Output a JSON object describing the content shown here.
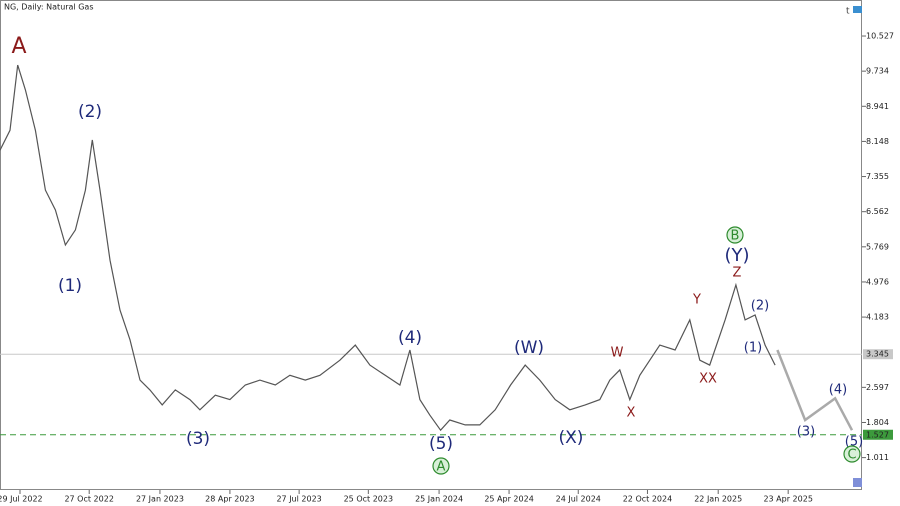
{
  "chart_data": {
    "type": "line",
    "title": "NG, Daily: Natural Gas",
    "xlim": [
      "2022-07-03",
      "2025-07-28"
    ],
    "ylim": [
      0.28,
      11.34
    ],
    "xticks": [
      {
        "value": "2022-07-29",
        "label": "29 Jul 2022"
      },
      {
        "value": "2022-10-27",
        "label": "27 Oct 2022"
      },
      {
        "value": "2023-01-27",
        "label": "27 Jan 2023"
      },
      {
        "value": "2023-04-28",
        "label": "28 Apr 2023"
      },
      {
        "value": "2023-07-27",
        "label": "27 Jul 2023"
      },
      {
        "value": "2023-10-25",
        "label": "25 Oct 2023"
      },
      {
        "value": "2024-01-25",
        "label": "25 Jan 2024"
      },
      {
        "value": "2024-04-25",
        "label": "25 Apr 2024"
      },
      {
        "value": "2024-07-24",
        "label": "24 Jul 2024"
      },
      {
        "value": "2024-10-22",
        "label": "22 Oct 2024"
      },
      {
        "value": "2025-01-22",
        "label": "22 Jan 2025"
      },
      {
        "value": "2025-04-23",
        "label": "23 Apr 2025"
      }
    ],
    "yticks": [
      10.527,
      9.734,
      8.941,
      8.148,
      7.355,
      6.562,
      5.769,
      4.976,
      4.183,
      2.597,
      1.804,
      1.011
    ],
    "series": [
      {
        "color": "#555555",
        "x": [
          "2022-07-03",
          "2022-07-16",
          "2022-07-26",
          "2022-08-05",
          "2022-08-18",
          "2022-08-31",
          "2022-09-13",
          "2022-09-26",
          "2022-10-09",
          "2022-10-22",
          "2022-10-31",
          "2022-11-10",
          "2022-11-23",
          "2022-12-06",
          "2022-12-19",
          "2023-01-01",
          "2023-01-14",
          "2023-01-30",
          "2023-02-16",
          "2023-03-07",
          "2023-03-20",
          "2023-04-09",
          "2023-04-28",
          "2023-05-18",
          "2023-06-06",
          "2023-06-26",
          "2023-07-15",
          "2023-08-04",
          "2023-08-23",
          "2023-09-18",
          "2023-10-08",
          "2023-10-27",
          "2023-11-16",
          "2023-12-05",
          "2023-12-18",
          "2023-12-31",
          "2024-01-13",
          "2024-01-27",
          "2024-02-08",
          "2024-02-28",
          "2024-03-18",
          "2024-04-07",
          "2024-04-27",
          "2024-05-16",
          "2024-06-04",
          "2024-06-24",
          "2024-07-13",
          "2024-08-02",
          "2024-08-21",
          "2024-09-03",
          "2024-09-16",
          "2024-09-29",
          "2024-10-12",
          "2024-11-07",
          "2024-11-27",
          "2024-12-16",
          "2024-12-29",
          "2025-01-11",
          "2025-01-31",
          "2025-02-14",
          "2025-02-26",
          "2025-03-11",
          "2025-03-24",
          "2025-04-06"
        ],
        "values": [
          7.95,
          8.4,
          9.87,
          9.31,
          8.4,
          7.05,
          6.6,
          5.81,
          6.15,
          7.05,
          8.18,
          7.05,
          5.47,
          4.34,
          3.67,
          2.76,
          2.54,
          2.2,
          2.54,
          2.32,
          2.09,
          2.42,
          2.32,
          2.65,
          2.76,
          2.65,
          2.87,
          2.76,
          2.87,
          3.21,
          3.55,
          3.1,
          2.87,
          2.65,
          3.44,
          2.32,
          1.97,
          1.63,
          1.86,
          1.75,
          1.75,
          2.09,
          2.65,
          3.1,
          2.76,
          2.32,
          2.09,
          2.2,
          2.32,
          2.76,
          2.99,
          2.32,
          2.87,
          3.55,
          3.44,
          4.12,
          3.21,
          3.1,
          4.12,
          4.91,
          4.12,
          4.23,
          3.55,
          3.1
        ]
      },
      {
        "color": "#aaaaaa",
        "x": [
          "2025-04-09",
          "2025-05-15",
          "2025-06-23",
          "2025-07-15"
        ],
        "values": [
          3.44,
          1.86,
          2.35,
          1.63
        ]
      }
    ],
    "price_lines": [
      {
        "value": 3.345,
        "color": "#c8c8c8",
        "dashed": false
      },
      {
        "value": 1.527,
        "color": "#3c9a3c",
        "dashed": true
      }
    ],
    "annotations": [
      {
        "text": "A",
        "color": "#8b1a1a"
      },
      {
        "text": "(2)",
        "color": "#1f2a7a"
      },
      {
        "text": "(1)",
        "color": "#1f2a7a"
      },
      {
        "text": "(3)",
        "color": "#1f2a7a"
      },
      {
        "text": "(4)",
        "color": "#1f2a7a"
      },
      {
        "text": "(5)",
        "color": "#1f2a7a"
      },
      {
        "text": "A",
        "color": "#2e8b2e"
      },
      {
        "text": "(W)",
        "color": "#1f2a7a"
      },
      {
        "text": "(X)",
        "color": "#1f2a7a"
      },
      {
        "text": "W",
        "color": "#8b1a1a"
      },
      {
        "text": "X",
        "color": "#8b1a1a"
      },
      {
        "text": "Y",
        "color": "#8b1a1a"
      },
      {
        "text": "XX",
        "color": "#8b1a1a"
      },
      {
        "text": "Z",
        "color": "#8b1a1a"
      },
      {
        "text": "(Y)",
        "color": "#1f2a7a"
      },
      {
        "text": "B",
        "color": "#2e8b2e"
      },
      {
        "text": "(2)",
        "color": "#1f2a7a"
      },
      {
        "text": "(1)",
        "color": "#1f2a7a"
      },
      {
        "text": "(3)",
        "color": "#1f2a7a"
      },
      {
        "text": "(4)",
        "color": "#1f2a7a"
      },
      {
        "text": "(5)",
        "color": "#1f2a7a"
      },
      {
        "text": "C",
        "color": "#2e8b2e"
      }
    ]
  }
}
